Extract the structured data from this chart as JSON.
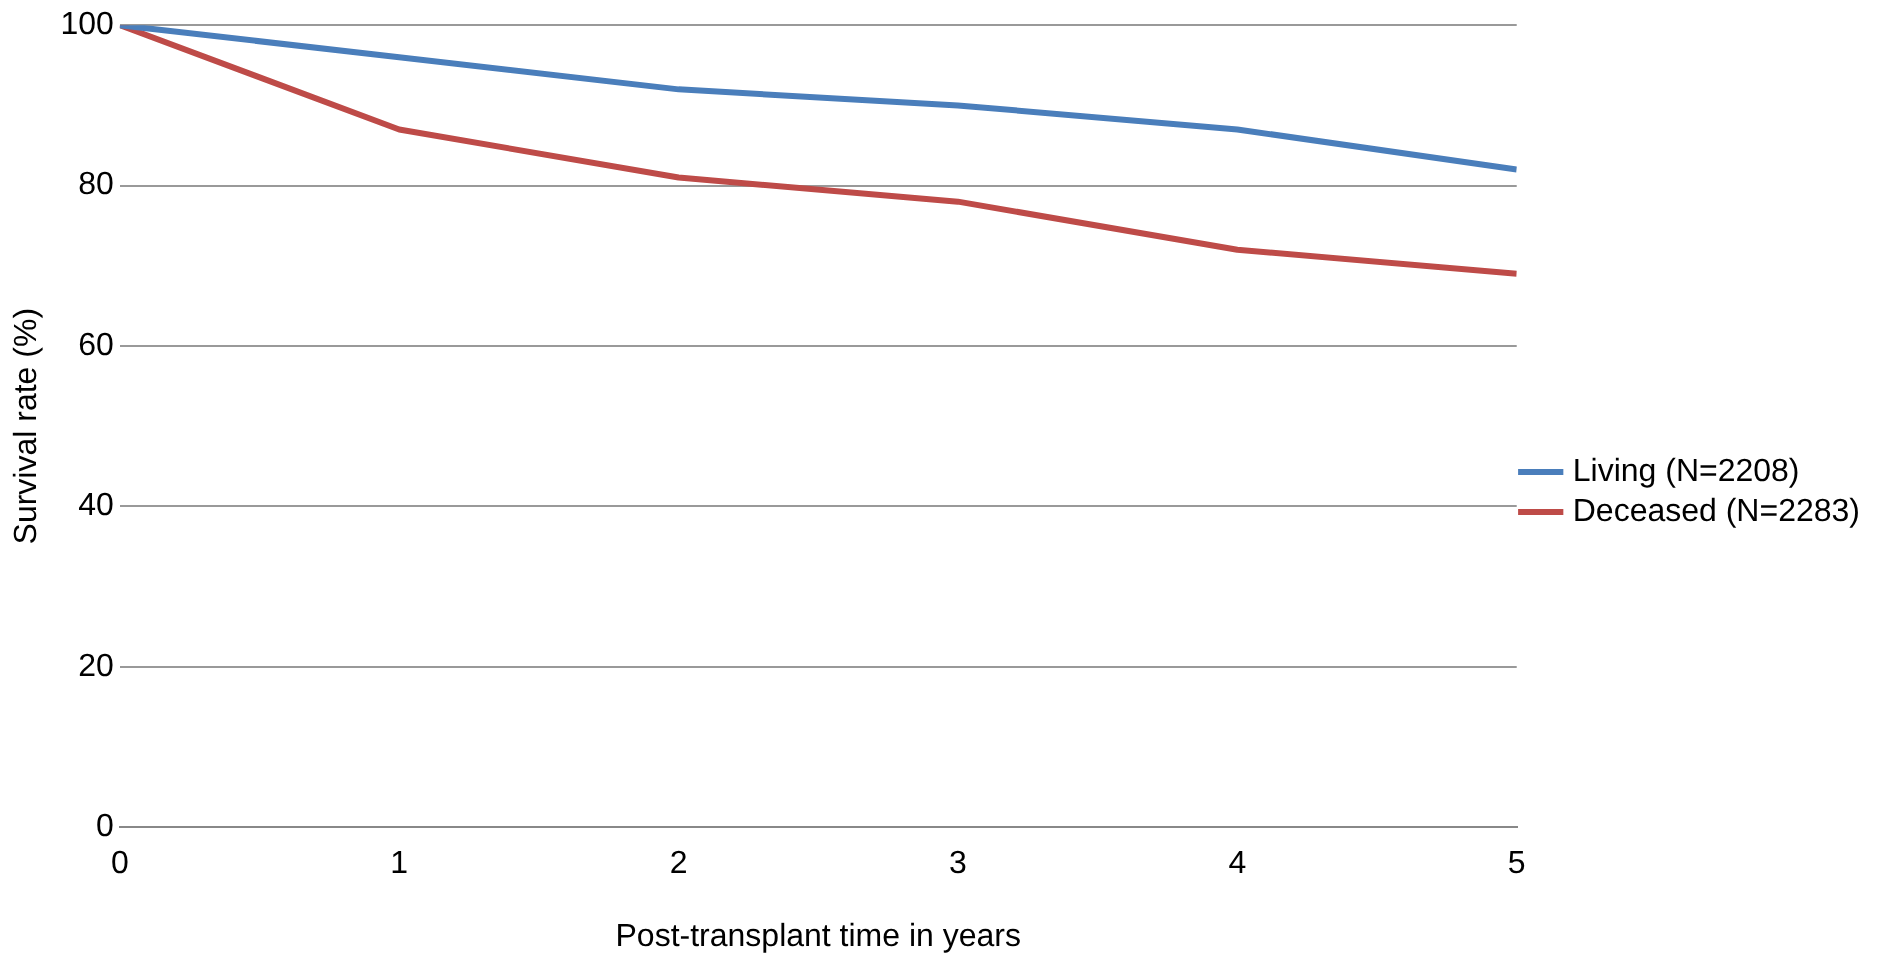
{
  "chart_data": {
    "type": "line",
    "xlabel": "Post-transplant time in years",
    "ylabel": "Survival rate (%)",
    "x": [
      0,
      1,
      2,
      3,
      4,
      5
    ],
    "series": [
      {
        "name": "Living (N=2208)",
        "color": "#4a7ebb",
        "values": [
          100,
          96,
          92,
          90,
          87,
          82
        ]
      },
      {
        "name": "Deceased (N=2283)",
        "color": "#be4b48",
        "values": [
          100,
          87,
          81,
          78,
          72,
          69
        ]
      }
    ],
    "xlim": [
      0,
      5
    ],
    "xticks": [
      0,
      1,
      2,
      3,
      4,
      5
    ],
    "ylim": [
      0,
      100
    ],
    "yticks": [
      0,
      20,
      40,
      60,
      80,
      100
    ],
    "grid": "y",
    "legend": "right",
    "marker": "none",
    "line_style": "solid"
  }
}
